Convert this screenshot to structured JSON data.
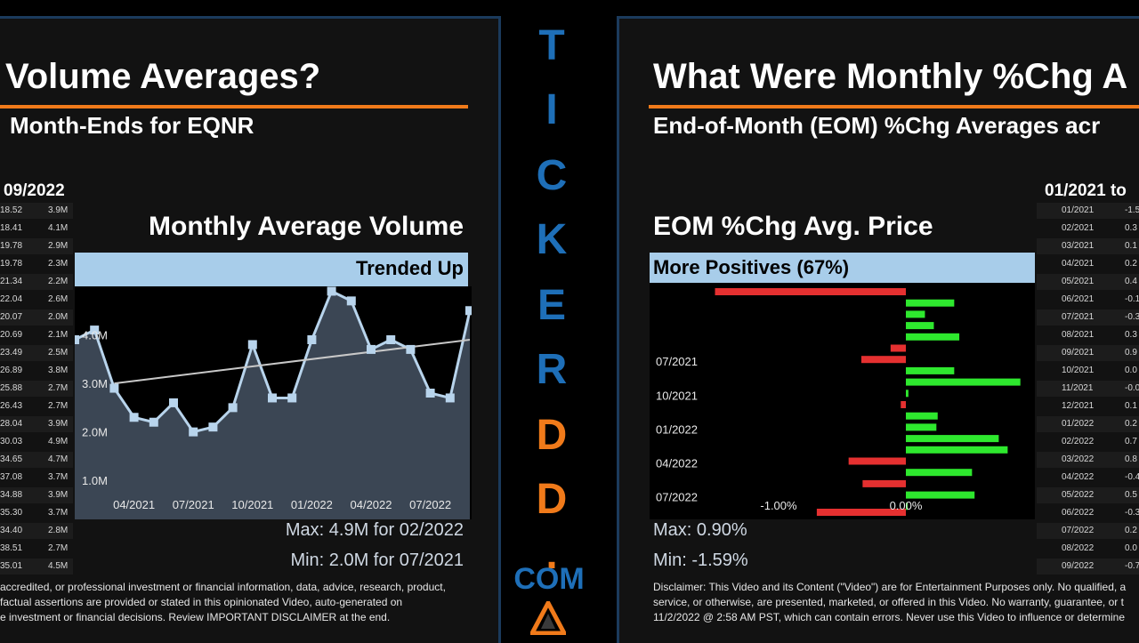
{
  "colors": {
    "blue": "#1e6fb8",
    "orange": "#f07a1a",
    "banner": "#a8cdea",
    "green": "#2ee82e",
    "red": "#e53030"
  },
  "left": {
    "title": "Volume Averages?",
    "subtitle": "Month-Ends for EQNR",
    "table_header": "09/2022",
    "table_rows": [
      [
        "18.52",
        "3.9M"
      ],
      [
        "18.41",
        "4.1M"
      ],
      [
        "19.78",
        "2.9M"
      ],
      [
        "19.78",
        "2.3M"
      ],
      [
        "21.34",
        "2.2M"
      ],
      [
        "22.04",
        "2.6M"
      ],
      [
        "20.07",
        "2.0M"
      ],
      [
        "20.69",
        "2.1M"
      ],
      [
        "23.49",
        "2.5M"
      ],
      [
        "26.89",
        "3.8M"
      ],
      [
        "25.88",
        "2.7M"
      ],
      [
        "26.43",
        "2.7M"
      ],
      [
        "28.04",
        "3.9M"
      ],
      [
        "30.03",
        "4.9M"
      ],
      [
        "34.65",
        "4.7M"
      ],
      [
        "37.08",
        "3.7M"
      ],
      [
        "34.88",
        "3.9M"
      ],
      [
        "35.30",
        "3.7M"
      ],
      [
        "34.40",
        "2.8M"
      ],
      [
        "38.51",
        "2.7M"
      ],
      [
        "35.01",
        "4.5M"
      ]
    ],
    "chart_title": "Monthly Average Volume",
    "banner": "Trended Up",
    "max_text": "Max: 4.9M for 02/2022",
    "min_text": "Min: 2.0M for 07/2021",
    "footer": [
      "accredited, or professional investment or financial information, data, advice, research, product,",
      "factual assertions are provided or stated in this opinionated Video, auto-generated on",
      "e investment or financial decisions. Review IMPORTANT DISCLAIMER at the end."
    ]
  },
  "center": {
    "letters": [
      "T",
      "I",
      "C",
      "K",
      "E",
      "R",
      "D",
      "D",
      "."
    ],
    "com": "COM"
  },
  "right": {
    "title": "What Were Monthly %Chg A",
    "subtitle": "End-of-Month (EOM) %Chg Averages acr",
    "table_header": "01/2021 to",
    "table_rows": [
      [
        "01/2021",
        "-1.5"
      ],
      [
        "02/2021",
        "0.3"
      ],
      [
        "03/2021",
        "0.1"
      ],
      [
        "04/2021",
        "0.2"
      ],
      [
        "05/2021",
        "0.4"
      ],
      [
        "06/2021",
        "-0.1"
      ],
      [
        "07/2021",
        "-0.3"
      ],
      [
        "08/2021",
        "0.3"
      ],
      [
        "09/2021",
        "0.9"
      ],
      [
        "10/2021",
        "0.0"
      ],
      [
        "11/2021",
        "-0.0"
      ],
      [
        "12/2021",
        "0.1"
      ],
      [
        "01/2022",
        "0.2"
      ],
      [
        "02/2022",
        "0.7"
      ],
      [
        "03/2022",
        "0.8"
      ],
      [
        "04/2022",
        "-0.4"
      ],
      [
        "05/2022",
        "0.5"
      ],
      [
        "06/2022",
        "-0.3"
      ],
      [
        "07/2022",
        "0.2"
      ],
      [
        "08/2022",
        "0.0"
      ],
      [
        "09/2022",
        "-0.7"
      ]
    ],
    "chart_title": "EOM %Chg Avg. Price",
    "banner": "More Positives (67%)",
    "max_text": "Max: 0.90%",
    "min_text": "Min: -1.59%",
    "footer": [
      "Disclaimer: This Video and its Content (\"Video\") are for Entertainment Purposes only. No qualified, a",
      "service, or otherwise, are presented, marketed, or offered in this Video. No warranty, guarantee, or t",
      "11/2/2022 @ 2:58 AM PST, which can contain errors. Never use this Video to influence or determine"
    ]
  },
  "chart_data": [
    {
      "type": "area",
      "title": "Monthly Average Volume",
      "x": [
        "01/2021",
        "02/2021",
        "03/2021",
        "04/2021",
        "05/2021",
        "06/2021",
        "07/2021",
        "08/2021",
        "09/2021",
        "10/2021",
        "11/2021",
        "12/2021",
        "01/2022",
        "02/2022",
        "03/2022",
        "04/2022",
        "05/2022",
        "06/2022",
        "07/2022",
        "08/2022",
        "09/2022"
      ],
      "values": [
        3.9,
        4.1,
        2.9,
        2.3,
        2.2,
        2.6,
        2.0,
        2.1,
        2.5,
        3.8,
        2.7,
        2.7,
        3.9,
        4.9,
        4.7,
        3.7,
        3.9,
        3.7,
        2.8,
        2.7,
        4.5
      ],
      "x_tick_labels": [
        "04/2021",
        "07/2021",
        "10/2021",
        "01/2022",
        "04/2022",
        "07/2022"
      ],
      "y_tick_labels": [
        "1.0M",
        "2.0M",
        "3.0M",
        "4.0M"
      ],
      "y_ticks": [
        1.0,
        2.0,
        3.0,
        4.0
      ],
      "ylim": [
        0.6,
        5.0
      ],
      "trendline": [
        3.0,
        3.9
      ]
    },
    {
      "type": "bar",
      "orientation": "horizontal",
      "title": "EOM %Chg Avg. Price",
      "categories": [
        "01/2021",
        "02/2021",
        "03/2021",
        "04/2021",
        "05/2021",
        "06/2021",
        "07/2021",
        "08/2021",
        "09/2021",
        "10/2021",
        "11/2021",
        "12/2021",
        "01/2022",
        "02/2022",
        "03/2022",
        "04/2022",
        "05/2022",
        "06/2022",
        "07/2022",
        "08/2022",
        "09/2022"
      ],
      "values": [
        -1.5,
        0.38,
        0.15,
        0.22,
        0.42,
        -0.12,
        -0.35,
        0.38,
        0.9,
        0.02,
        -0.04,
        0.25,
        0.24,
        0.73,
        0.8,
        -0.45,
        0.52,
        -0.34,
        0.54,
        0.0,
        -0.7
      ],
      "y_tick_labels": [
        "07/2021",
        "10/2021",
        "01/2022",
        "04/2022",
        "07/2022"
      ],
      "x_tick_labels": [
        "-1.00%",
        "0.00%"
      ],
      "xlim": [
        -1.59,
        0.98
      ]
    }
  ]
}
